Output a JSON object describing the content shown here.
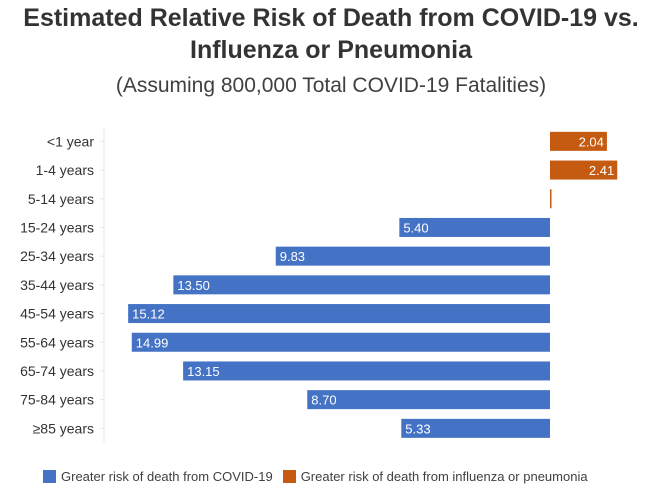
{
  "chart_data": {
    "type": "bar",
    "orientation": "horizontal-diverging",
    "title_line1": "Estimated Relative Risk of Death from COVID-19 vs.",
    "title_line2": "Influenza or Pneumonia",
    "subtitle": "(Assuming 800,000 Total COVID-19 Fatalities)",
    "xlabel": "",
    "ylabel": "",
    "grid": false,
    "legend_position": "bottom",
    "categories": [
      "<1 year",
      "1-4 years",
      "5-14 years",
      "15-24 years",
      "25-34 years",
      "35-44 years",
      "45-54 years",
      "55-64 years",
      "65-74 years",
      "75-84 years",
      "≥85 years"
    ],
    "series": [
      {
        "name": "Greater risk of death from COVID-19",
        "color": "#4472c4",
        "direction": "left",
        "values": [
          null,
          null,
          null,
          5.4,
          9.83,
          13.5,
          15.12,
          14.99,
          13.15,
          8.7,
          5.33
        ],
        "labels": [
          "",
          "",
          "",
          "5.40",
          "9.83",
          "13.50",
          "15.12",
          "14.99",
          "13.15",
          "8.70",
          "5.33"
        ]
      },
      {
        "name": "Greater risk of death from influenza or pneumonia",
        "color": "#c55a11",
        "direction": "right",
        "values": [
          2.04,
          2.41,
          0.05,
          null,
          null,
          null,
          null,
          null,
          null,
          null,
          null
        ],
        "labels": [
          "2.04",
          "2.41",
          "",
          "",
          "",
          "",
          "",
          "",
          "",
          "",
          ""
        ]
      }
    ]
  }
}
